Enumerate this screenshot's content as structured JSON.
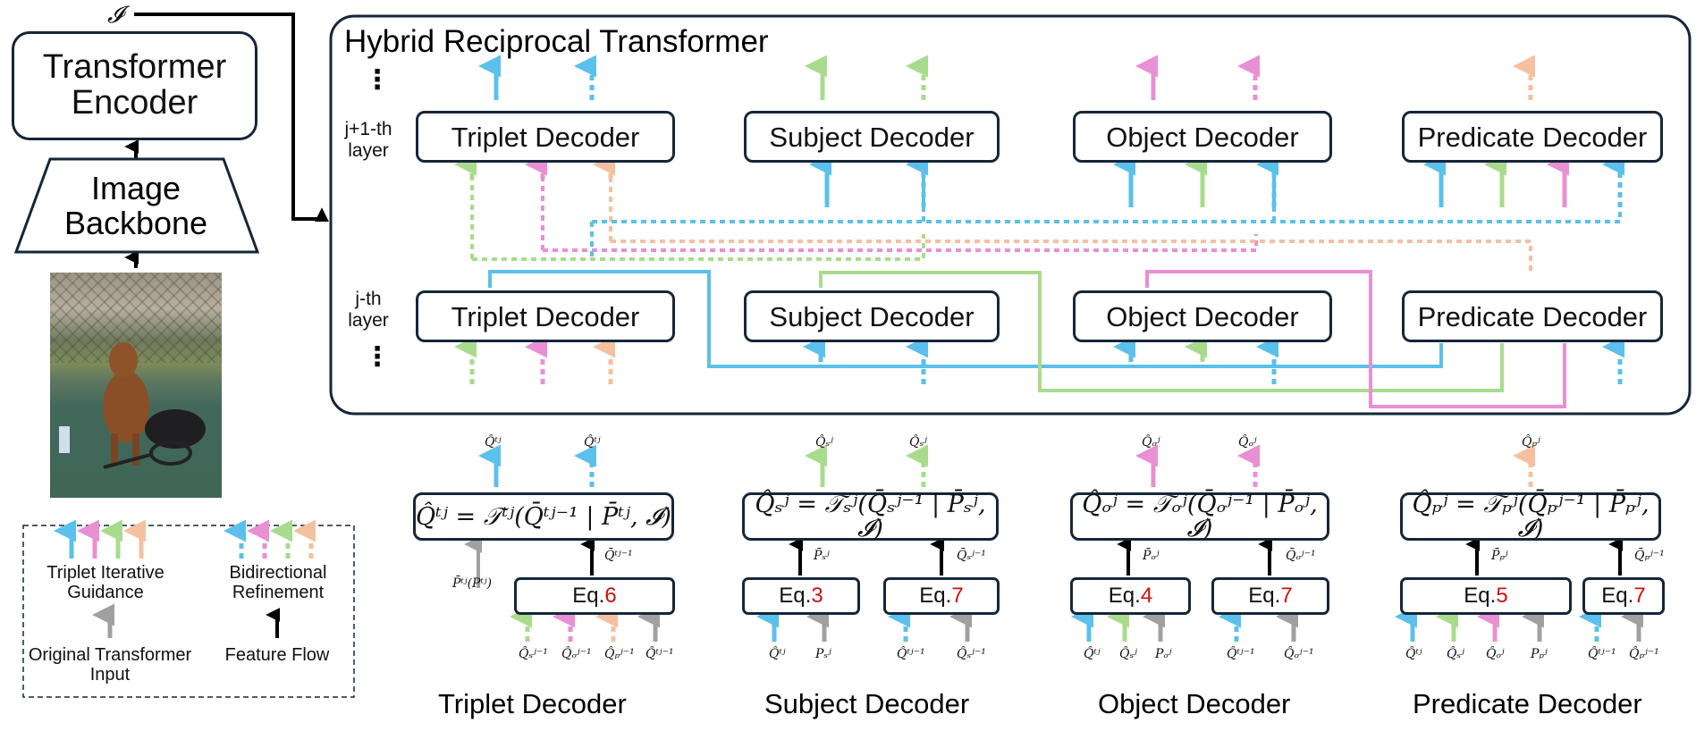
{
  "input_symbol": "𝓘",
  "left": {
    "transformer_encoder": "Transformer Encoder",
    "image_backbone": "Image Backbone"
  },
  "hrt": {
    "title": "Hybrid Reciprocal Transformer",
    "layer_upper": "j+1-th layer",
    "layer_lower": "j-th layer",
    "ellipsis": "⋮",
    "decoders": [
      "Triplet Decoder",
      "Subject Decoder",
      "Object Decoder",
      "Predicate Decoder"
    ]
  },
  "colors": {
    "triplet": "#5bc0eb",
    "subject": "#a8dc8c",
    "object": "#e98fd4",
    "predicate": "#f5c0a0",
    "original": "#a0a0a0",
    "flow": "#000000",
    "frame": "#15263a",
    "eqref": "#d01010"
  },
  "legend": {
    "triplet_iterative_guidance": "Triplet Iterative Guidance",
    "bidirectional_refinement": "Bidirectional Refinement",
    "original_transformer_input": "Original Transformer Input",
    "feature_flow": "Feature Flow"
  },
  "details": [
    {
      "caption": "Triplet Decoder",
      "equation": "Q̂ᵗʲ = 𝒯ᵗʲ(Q̄ᵗʲ⁻¹ | P̄ᵗʲ, 𝓘)",
      "outputs": [
        "Q̂ᵗʲ",
        "Q̂ᵗʲ"
      ],
      "eq_boxes": [
        {
          "prefix": "Eq. ",
          "ref": "6"
        }
      ],
      "side_label": "P̄ᵗʲ(Pᵗʲ)",
      "feature_label": "Q̄ᵗʲ⁻¹",
      "inputs": [
        "Q̂ₛʲ⁻¹",
        "Q̂ₒʲ⁻¹",
        "Q̂ₚʲ⁻¹",
        "Q̂ᵗʲ⁻¹"
      ]
    },
    {
      "caption": "Subject Decoder",
      "equation": "Q̂ₛʲ = 𝒯ₛʲ(Q̄ₛʲ⁻¹ | P̄ₛʲ, 𝓘)",
      "outputs": [
        "Q̂ₛʲ",
        "Q̂ₛʲ"
      ],
      "eq_boxes": [
        {
          "prefix": "Eq. ",
          "ref": "3"
        },
        {
          "prefix": "Eq. ",
          "ref": "7"
        }
      ],
      "flow_labels": [
        "P̄ₛʲ",
        "Q̄ₛʲ⁻¹"
      ],
      "inputs": [
        "Q̂ᵗʲ",
        "Pₛʲ",
        "Q̂ᵗʲ⁻¹",
        "Q̂ₛʲ⁻¹"
      ]
    },
    {
      "caption": "Object Decoder",
      "equation": "Q̂ₒʲ = 𝒯ₒʲ(Q̄ₒʲ⁻¹ | P̄ₒʲ, 𝓘)",
      "outputs": [
        "Q̂ₒʲ",
        "Q̂ₒʲ"
      ],
      "eq_boxes": [
        {
          "prefix": "Eq. ",
          "ref": "4"
        },
        {
          "prefix": "Eq. ",
          "ref": "7"
        }
      ],
      "flow_labels": [
        "P̄ₒʲ",
        "Q̄ₒʲ⁻¹"
      ],
      "inputs": [
        "Q̂ᵗʲ",
        "Q̂ₛʲ",
        "Pₒʲ",
        "Q̂ᵗʲ⁻¹",
        "Q̂ₒʲ⁻¹"
      ]
    },
    {
      "caption": "Predicate Decoder",
      "equation": "Q̂ₚʲ = 𝒯ₚʲ(Q̄ₚʲ⁻¹ | P̄ₚʲ, 𝓘)",
      "outputs": [
        "Q̂ₚʲ"
      ],
      "eq_boxes": [
        {
          "prefix": "Eq. ",
          "ref": "5"
        },
        {
          "prefix": "Eq. ",
          "ref": "7"
        }
      ],
      "flow_labels": [
        "P̄ₚʲ",
        "Q̄ₚʲ⁻¹"
      ],
      "inputs": [
        "Q̂ᵗʲ",
        "Q̂ₛʲ",
        "Q̂ₒʲ",
        "Pₚʲ",
        "Q̂ᵗʲ⁻¹",
        "Q̂ₚʲ⁻¹"
      ]
    }
  ]
}
